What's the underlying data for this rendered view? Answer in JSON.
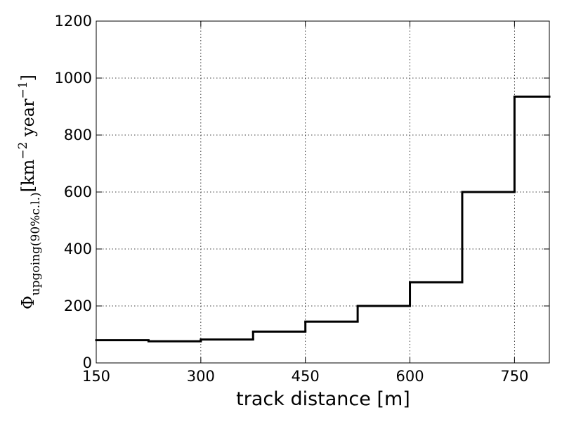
{
  "chart_data": {
    "type": "histogram",
    "xlabel": "track distance [m]",
    "ylabel_parts": [
      "Φ",
      "upgoing(90%c.l.)",
      "[km",
      "−2",
      " year",
      "−1",
      "]"
    ],
    "bins": [
      150,
      225,
      300,
      375,
      450,
      525,
      600,
      675,
      750,
      800
    ],
    "counts": [
      80,
      76,
      82,
      110,
      145,
      200,
      283,
      600,
      935
    ],
    "color": "#000000",
    "xlim": [
      150,
      800
    ],
    "xticks": [
      150,
      300,
      450,
      600,
      750
    ],
    "ylim": [
      0,
      1200
    ],
    "yticks": [
      0,
      200,
      400,
      600,
      800,
      1000,
      1200
    ],
    "grid": true
  }
}
